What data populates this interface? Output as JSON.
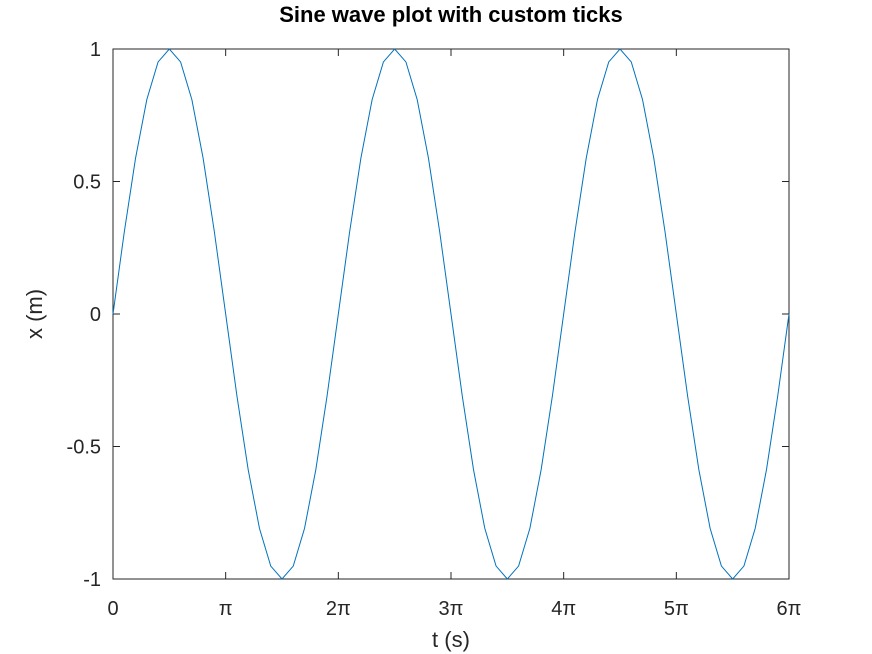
{
  "chart_data": {
    "type": "line",
    "title": "Sine wave plot with custom ticks",
    "xlabel": "t (s)",
    "ylabel": "x (m)",
    "xlim": [
      0,
      18.8496
    ],
    "ylim": [
      -1,
      1
    ],
    "grid": false,
    "xticks": [
      {
        "value": 0,
        "label": "0"
      },
      {
        "value": 3.14159,
        "label": "π"
      },
      {
        "value": 6.28319,
        "label": "2π"
      },
      {
        "value": 9.42478,
        "label": "3π"
      },
      {
        "value": 12.56637,
        "label": "4π"
      },
      {
        "value": 15.70796,
        "label": "5π"
      },
      {
        "value": 18.84956,
        "label": "6π"
      }
    ],
    "yticks": [
      {
        "value": 1,
        "label": "1"
      },
      {
        "value": 0.5,
        "label": "0.5"
      },
      {
        "value": 0,
        "label": "0"
      },
      {
        "value": -0.5,
        "label": "-0.5"
      },
      {
        "value": -1,
        "label": "-1"
      }
    ],
    "series": [
      {
        "function": "sin",
        "samples": 61,
        "x_start": 0,
        "x_end": 18.84956,
        "color": "#0072bd"
      }
    ]
  }
}
